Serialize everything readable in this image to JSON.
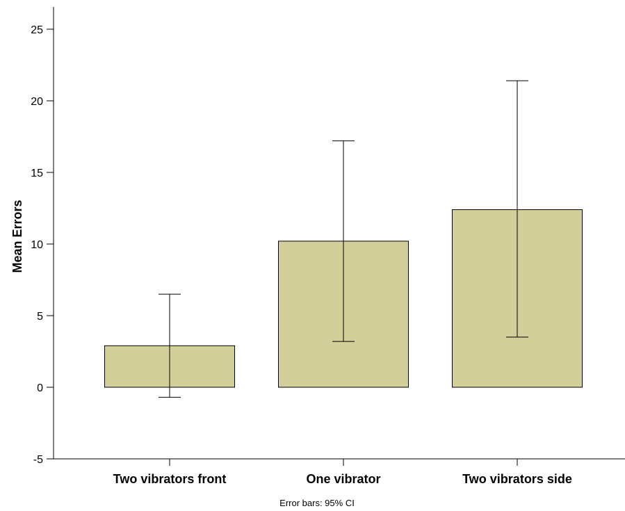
{
  "chart_data": {
    "type": "bar",
    "categories": [
      "Two vibrators front",
      "One vibrator",
      "Two vibrators side"
    ],
    "values": [
      2.9,
      10.2,
      12.4
    ],
    "error_bars": [
      {
        "low": -0.7,
        "high": 6.5
      },
      {
        "low": 3.2,
        "high": 17.2
      },
      {
        "low": 3.5,
        "high": 21.4
      }
    ],
    "title": "",
    "xlabel": "",
    "ylabel": "Mean Errors",
    "ylim": [
      -5,
      26.5
    ],
    "yticks": [
      -5,
      0,
      5,
      10,
      15,
      20,
      25
    ],
    "ytick_labels": [
      "-5",
      "0",
      "5",
      "10",
      "15",
      "20",
      "25"
    ],
    "note": "Error bars: 95% CI",
    "bar_color": "#d3cf9a",
    "grid": false,
    "legend": "none"
  }
}
